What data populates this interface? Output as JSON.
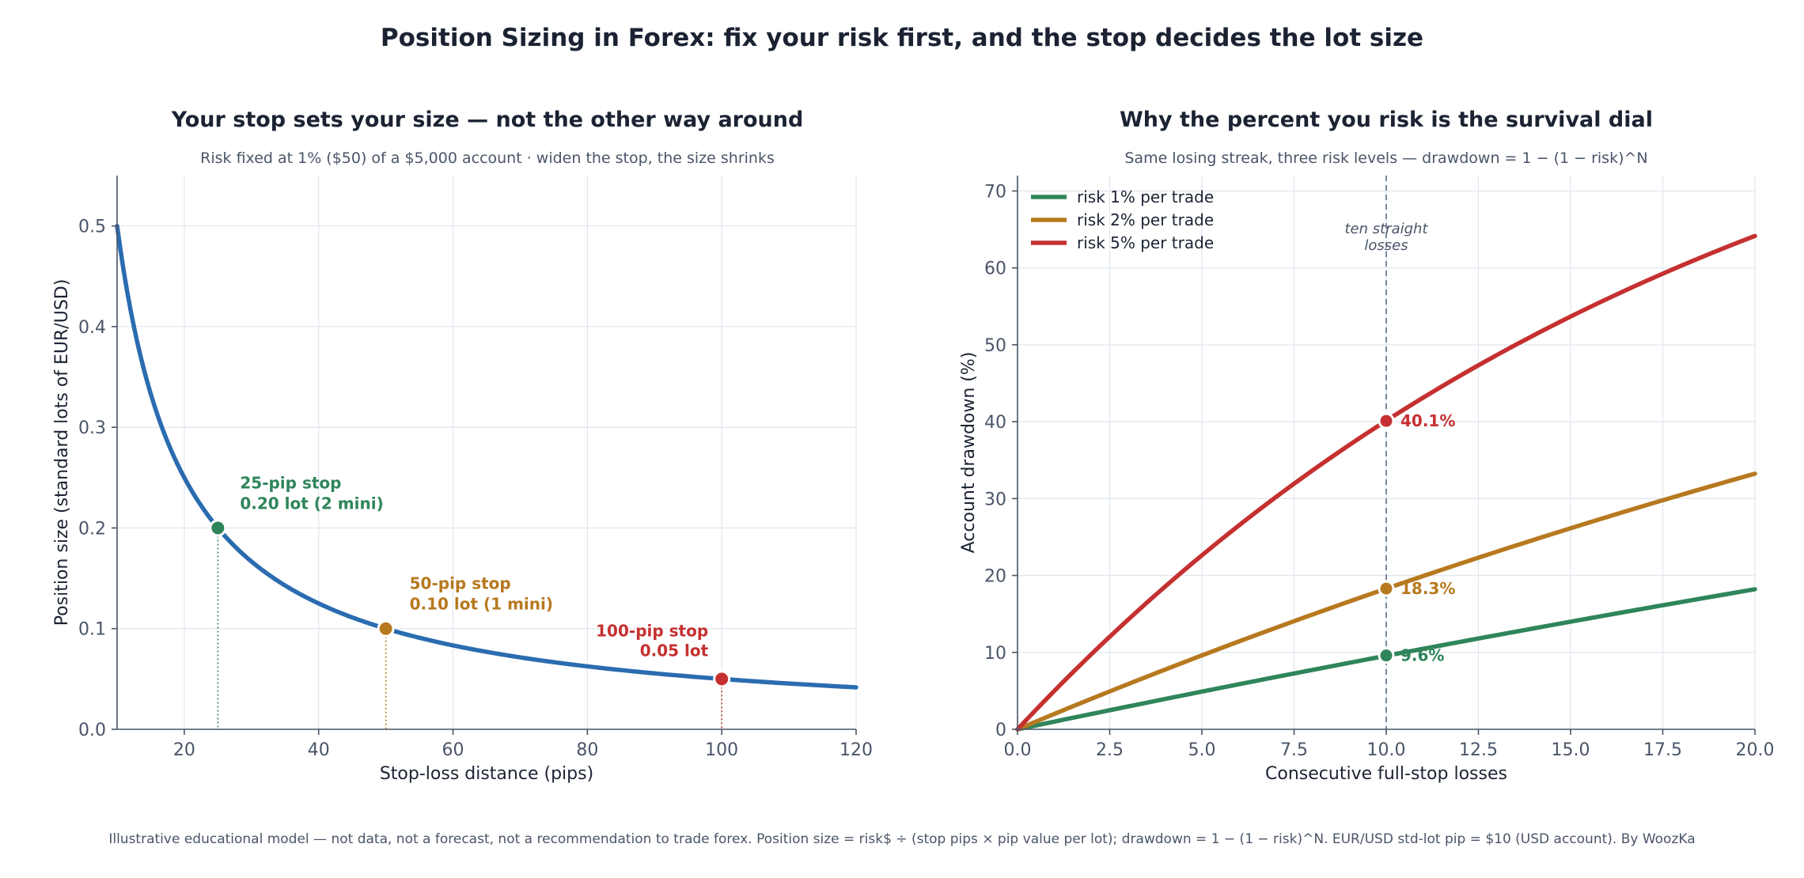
{
  "title": "Position Sizing in Forex: fix your risk first, and the stop decides the lot size",
  "footer": "Illustrative educational model — not data, not a forecast, not a recommendation to trade forex.   Position size = risk$ ÷ (stop pips × pip value per lot);  drawdown = 1 − (1 − risk)^N.   EUR/USD std-lot pip = $10 (USD account).   By WoozKa",
  "colors": {
    "curve": "#2b6cb0",
    "green": "#2f855a",
    "orange": "#b7791f",
    "red": "#c53030",
    "text": "#1b2333",
    "muted": "#4a5568",
    "grid": "#e2e8f0"
  },
  "chart_data": [
    {
      "type": "line",
      "title": "Your stop sets your size — not the other way around",
      "subtitle": "Risk fixed at 1% ($50) of a $5,000 account · widen the stop, the size shrinks",
      "xlabel": "Stop-loss distance (pips)",
      "ylabel": "Position size (standard lots of EUR/USD)",
      "xlim": [
        10,
        120
      ],
      "ylim": [
        0,
        0.55
      ],
      "xticks": [
        20,
        40,
        60,
        80,
        100,
        120
      ],
      "yticks": [
        0.0,
        0.1,
        0.2,
        0.3,
        0.4,
        0.5
      ],
      "xtick_labels": [
        "20",
        "40",
        "60",
        "80",
        "100",
        "120"
      ],
      "ytick_labels": [
        "0.0",
        "0.1",
        "0.2",
        "0.3",
        "0.4",
        "0.5"
      ],
      "grid": true,
      "series": [
        {
          "x": [
            10,
            12.5,
            15,
            17.5,
            20,
            25,
            30,
            35,
            40,
            45,
            50,
            60,
            70,
            80,
            90,
            100,
            110,
            120
          ],
          "values": [
            0.5,
            0.4,
            0.3333,
            0.2857,
            0.25,
            0.2,
            0.1667,
            0.1429,
            0.125,
            0.1111,
            0.1,
            0.0833,
            0.0714,
            0.0625,
            0.0556,
            0.05,
            0.0455,
            0.0417
          ],
          "color": "#2b6cb0"
        }
      ],
      "markers": [
        {
          "x": 25,
          "y": 0.2,
          "color": "#2f855a",
          "line1": "25-pip stop",
          "line2": "0.20 lot (2 mini)"
        },
        {
          "x": 50,
          "y": 0.1,
          "color": "#b7791f",
          "line1": "50-pip stop",
          "line2": "0.10 lot (1 mini)"
        },
        {
          "x": 100,
          "y": 0.05,
          "color": "#c53030",
          "line1": "100-pip stop",
          "line2": "0.05 lot"
        }
      ]
    },
    {
      "type": "line",
      "title": "Why the percent you risk is the survival dial",
      "subtitle": "Same losing streak, three risk levels — drawdown = 1 − (1 − risk)^N",
      "xlabel": "Consecutive full-stop losses",
      "ylabel": "Account drawdown (%)",
      "xlim": [
        0,
        20
      ],
      "ylim": [
        0,
        72
      ],
      "xticks": [
        0,
        2.5,
        5,
        7.5,
        10,
        12.5,
        15,
        17.5,
        20
      ],
      "yticks": [
        0,
        10,
        20,
        30,
        40,
        50,
        60,
        70
      ],
      "xtick_labels": [
        "0.0",
        "2.5",
        "5.0",
        "7.5",
        "10.0",
        "12.5",
        "15.0",
        "17.5",
        "20.0"
      ],
      "ytick_labels": [
        "0",
        "10",
        "20",
        "30",
        "40",
        "50",
        "60",
        "70"
      ],
      "grid": true,
      "legend": "top-left",
      "series": [
        {
          "name": "risk 1% per trade",
          "color": "#2f855a",
          "x": [
            0,
            2,
            4,
            6,
            8,
            10,
            12,
            14,
            16,
            18,
            20
          ],
          "values": [
            0,
            1.99,
            3.94,
            5.85,
            7.73,
            9.56,
            11.36,
            13.13,
            14.85,
            16.55,
            18.21
          ]
        },
        {
          "name": "risk 2% per trade",
          "color": "#b7791f",
          "x": [
            0,
            2,
            4,
            6,
            8,
            10,
            12,
            14,
            16,
            18,
            20
          ],
          "values": [
            0,
            3.96,
            7.76,
            11.42,
            14.92,
            18.29,
            21.53,
            24.64,
            27.62,
            30.49,
            33.24
          ]
        },
        {
          "name": "risk 5% per trade",
          "color": "#c53030",
          "x": [
            0,
            2,
            4,
            6,
            8,
            10,
            12,
            14,
            16,
            18,
            20
          ],
          "values": [
            0,
            9.75,
            18.55,
            26.49,
            33.66,
            40.13,
            45.96,
            51.23,
            55.99,
            60.28,
            64.15
          ]
        }
      ],
      "vline": {
        "x": 10,
        "label_line1": "ten straight",
        "label_line2": "losses"
      },
      "markers": [
        {
          "x": 10,
          "y": 40.1,
          "color": "#c53030",
          "label": "40.1%"
        },
        {
          "x": 10,
          "y": 18.3,
          "color": "#b7791f",
          "label": "18.3%"
        },
        {
          "x": 10,
          "y": 9.6,
          "color": "#2f855a",
          "label": "9.6%"
        }
      ]
    }
  ]
}
